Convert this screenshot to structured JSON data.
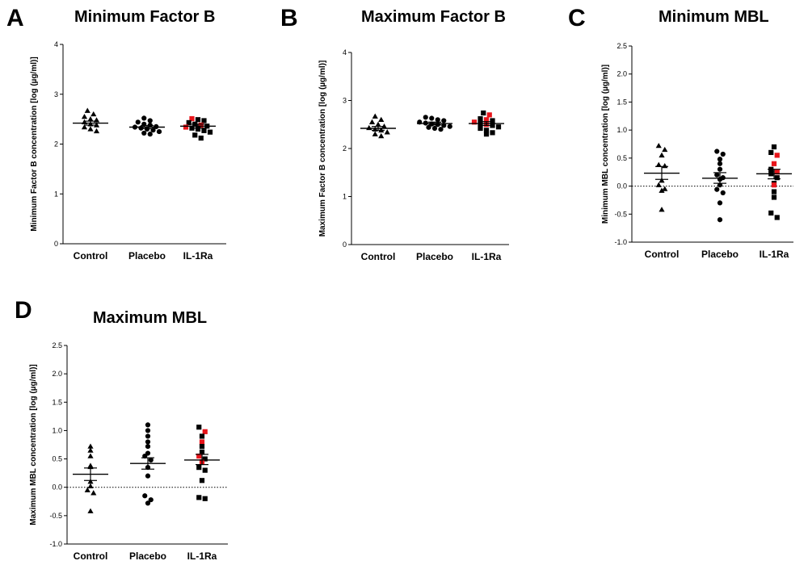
{
  "colors": {
    "ink": "#000000",
    "highlight": "#e8151b",
    "background": "#ffffff"
  },
  "marker_shapes": {
    "Control": "triangle",
    "Placebo": "circle",
    "IL-1Ra": "square"
  },
  "chart_data": [
    {
      "panel": "A",
      "title": "Minimum Factor B",
      "type": "scatter",
      "ylabel": "Minimum Factor B concentration [log (µg/ml)]",
      "ylim": [
        0,
        4
      ],
      "yticks": [
        0,
        1,
        2,
        3,
        4
      ],
      "ytick_labels": [
        "0",
        "1",
        "2",
        "3",
        "4"
      ],
      "zero_line": false,
      "categories": [
        "Control",
        "Placebo",
        "IL-1Ra"
      ],
      "groups": [
        {
          "category": "Control",
          "mean": 2.42,
          "sem_low": 2.38,
          "sem_high": 2.46,
          "values": [
            2.67,
            2.6,
            2.55,
            2.5,
            2.48,
            2.44,
            2.4,
            2.38,
            2.34,
            2.3,
            2.26
          ],
          "highlight": []
        },
        {
          "category": "Placebo",
          "mean": 2.34,
          "sem_low": 2.31,
          "sem_high": 2.37,
          "values": [
            2.52,
            2.47,
            2.44,
            2.4,
            2.38,
            2.35,
            2.34,
            2.32,
            2.3,
            2.28,
            2.25,
            2.22,
            2.2
          ],
          "highlight": []
        },
        {
          "category": "IL-1Ra",
          "mean": 2.36,
          "sem_low": 2.32,
          "sem_high": 2.4,
          "values": [
            2.51,
            2.49,
            2.47,
            2.43,
            2.4,
            2.38,
            2.36,
            2.34,
            2.32,
            2.3,
            2.27,
            2.24,
            2.18,
            2.12
          ],
          "highlight": [
            0,
            5,
            7
          ]
        }
      ]
    },
    {
      "panel": "B",
      "title": "Maximum Factor B",
      "type": "scatter",
      "ylabel": "Maximum Factor B concentration [log (µg/ml)]",
      "ylim": [
        0,
        4
      ],
      "yticks": [
        0,
        1,
        2,
        3,
        4
      ],
      "ytick_labels": [
        "0",
        "1",
        "2",
        "3",
        "4"
      ],
      "zero_line": false,
      "categories": [
        "Control",
        "Placebo",
        "IL-1Ra"
      ],
      "groups": [
        {
          "category": "Control",
          "mean": 2.42,
          "sem_low": 2.38,
          "sem_high": 2.46,
          "values": [
            2.67,
            2.6,
            2.55,
            2.5,
            2.46,
            2.43,
            2.4,
            2.38,
            2.34,
            2.3,
            2.26
          ],
          "highlight": []
        },
        {
          "category": "Placebo",
          "mean": 2.52,
          "sem_low": 2.49,
          "sem_high": 2.55,
          "values": [
            2.65,
            2.63,
            2.6,
            2.58,
            2.55,
            2.53,
            2.51,
            2.5,
            2.48,
            2.46,
            2.44,
            2.42,
            2.4
          ],
          "highlight": []
        },
        {
          "category": "IL-1Ra",
          "mean": 2.52,
          "sem_low": 2.48,
          "sem_high": 2.56,
          "values": [
            2.74,
            2.7,
            2.62,
            2.6,
            2.58,
            2.55,
            2.52,
            2.5,
            2.48,
            2.45,
            2.42,
            2.38,
            2.33,
            2.3
          ],
          "highlight": [
            1,
            3,
            5,
            7
          ]
        }
      ]
    },
    {
      "panel": "C",
      "title": "Minimum MBL",
      "type": "scatter",
      "ylabel": "Minimum MBL concentration [log (µg/ml)]",
      "ylim": [
        -1,
        2.5
      ],
      "yticks": [
        -1,
        -0.5,
        0,
        0.5,
        1,
        1.5,
        2,
        2.5
      ],
      "ytick_labels": [
        "-1.0",
        "-0.5",
        "0.0",
        "0.5",
        "1.0",
        "1.5",
        "2.0",
        "2.5"
      ],
      "zero_line": true,
      "categories": [
        "Control",
        "Placebo",
        "IL-1Ra"
      ],
      "groups": [
        {
          "category": "Control",
          "mean": 0.23,
          "sem_low": 0.12,
          "sem_high": 0.35,
          "values": [
            0.72,
            0.65,
            0.55,
            0.38,
            0.36,
            0.1,
            0.02,
            -0.05,
            -0.08,
            -0.42
          ],
          "highlight": []
        },
        {
          "category": "Placebo",
          "mean": 0.14,
          "sem_low": 0.05,
          "sem_high": 0.24,
          "values": [
            0.62,
            0.57,
            0.48,
            0.4,
            0.3,
            0.2,
            0.15,
            0.12,
            0.02,
            -0.06,
            -0.12,
            -0.3,
            -0.6
          ],
          "highlight": []
        },
        {
          "category": "IL-1Ra",
          "mean": 0.22,
          "sem_low": 0.13,
          "sem_high": 0.3,
          "values": [
            0.7,
            0.6,
            0.55,
            0.4,
            0.3,
            0.25,
            0.22,
            0.15,
            0.05,
            0.02,
            -0.1,
            -0.2,
            -0.48,
            -0.56
          ],
          "highlight": [
            2,
            3,
            5,
            9
          ]
        }
      ]
    },
    {
      "panel": "D",
      "title": "Maximum MBL",
      "type": "scatter",
      "ylabel": "Maximum MBL concentration [log (µg/ml)]",
      "ylim": [
        -1,
        2.5
      ],
      "yticks": [
        -1,
        -0.5,
        0,
        0.5,
        1,
        1.5,
        2,
        2.5
      ],
      "ytick_labels": [
        "-1.0",
        "-0.5",
        "0.0",
        "0.5",
        "1.0",
        "1.5",
        "2.0",
        "2.5"
      ],
      "zero_line": true,
      "categories": [
        "Control",
        "Placebo",
        "IL-1Ra"
      ],
      "groups": [
        {
          "category": "Control",
          "mean": 0.23,
          "sem_low": 0.12,
          "sem_high": 0.34,
          "values": [
            0.72,
            0.65,
            0.55,
            0.38,
            0.36,
            0.1,
            0.02,
            -0.05,
            -0.1,
            -0.42
          ],
          "highlight": []
        },
        {
          "category": "Placebo",
          "mean": 0.42,
          "sem_low": 0.32,
          "sem_high": 0.52,
          "values": [
            1.1,
            1.0,
            0.9,
            0.8,
            0.72,
            0.6,
            0.55,
            0.48,
            0.35,
            0.2,
            -0.15,
            -0.22,
            -0.28
          ],
          "highlight": []
        },
        {
          "category": "IL-1Ra",
          "mean": 0.48,
          "sem_low": 0.4,
          "sem_high": 0.58,
          "values": [
            1.06,
            0.98,
            0.9,
            0.8,
            0.72,
            0.62,
            0.55,
            0.5,
            0.45,
            0.35,
            0.3,
            0.12,
            -0.18,
            -0.2
          ],
          "highlight": [
            1,
            3,
            6,
            8
          ]
        }
      ]
    }
  ]
}
